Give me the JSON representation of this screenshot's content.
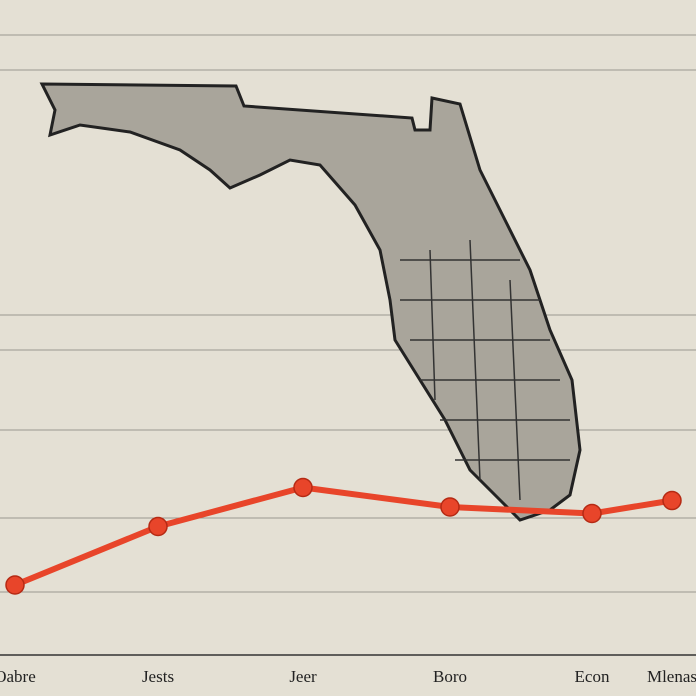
{
  "chart_data": {
    "type": "line",
    "categories": [
      "Oabre",
      "Jests",
      "Jeer",
      "Boro",
      "Econ",
      "Mlenas"
    ],
    "series": [
      {
        "name": null,
        "color": "#e8452a",
        "values": [
          10,
          19,
          25,
          22,
          21,
          23
        ]
      }
    ],
    "ylim": [
      0,
      100
    ]
  }
}
